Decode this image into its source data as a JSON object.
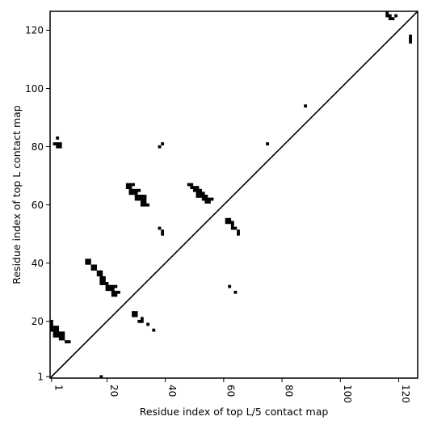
{
  "chart_data": {
    "type": "heatmap",
    "title": "",
    "xlabel": "Residue index of top L/5 contact map",
    "ylabel": "Residue index of top L contact map",
    "xlim": [
      0.5,
      126.5
    ],
    "ylim": [
      0.5,
      126.5
    ],
    "xticks": [
      1,
      20,
      40,
      60,
      80,
      100,
      120
    ],
    "yticks": [
      1,
      20,
      40,
      60,
      80,
      100,
      120
    ],
    "xtick_labels": [
      "1",
      "20",
      "40",
      "60",
      "80",
      "100",
      "120"
    ],
    "ytick_labels": [
      "1",
      "20",
      "40",
      "60",
      "80",
      "100",
      "120"
    ],
    "xtick_rotation": "vertical",
    "grid": false,
    "legend": "none",
    "diagonal_line": true,
    "cell_color": "#000000",
    "line_color": "#000000",
    "contacts": [
      [
        1,
        20
      ],
      [
        1,
        19
      ],
      [
        1,
        18
      ],
      [
        1,
        17
      ],
      [
        2,
        18
      ],
      [
        2,
        17
      ],
      [
        2,
        16
      ],
      [
        2,
        15
      ],
      [
        3,
        18
      ],
      [
        3,
        17
      ],
      [
        3,
        16
      ],
      [
        3,
        15
      ],
      [
        4,
        16
      ],
      [
        4,
        15
      ],
      [
        4,
        14
      ],
      [
        5,
        16
      ],
      [
        5,
        15
      ],
      [
        5,
        14
      ],
      [
        6,
        13
      ],
      [
        7,
        13
      ],
      [
        2,
        81
      ],
      [
        3,
        83
      ],
      [
        3,
        81
      ],
      [
        3,
        80
      ],
      [
        4,
        81
      ],
      [
        4,
        80
      ],
      [
        13,
        41
      ],
      [
        13,
        40
      ],
      [
        14,
        41
      ],
      [
        14,
        40
      ],
      [
        15,
        39
      ],
      [
        15,
        38
      ],
      [
        16,
        39
      ],
      [
        16,
        38
      ],
      [
        17,
        37
      ],
      [
        17,
        36
      ],
      [
        18,
        37
      ],
      [
        18,
        36
      ],
      [
        18,
        35
      ],
      [
        18,
        34
      ],
      [
        18,
        33
      ],
      [
        19,
        35
      ],
      [
        19,
        34
      ],
      [
        19,
        33
      ],
      [
        20,
        33
      ],
      [
        20,
        32
      ],
      [
        20,
        31
      ],
      [
        21,
        32
      ],
      [
        21,
        31
      ],
      [
        22,
        32
      ],
      [
        22,
        31
      ],
      [
        22,
        30
      ],
      [
        22,
        29
      ],
      [
        23,
        32
      ],
      [
        23,
        30
      ],
      [
        23,
        29
      ],
      [
        24,
        30
      ],
      [
        18,
        1
      ],
      [
        29,
        23
      ],
      [
        29,
        22
      ],
      [
        30,
        23
      ],
      [
        30,
        22
      ],
      [
        31,
        20
      ],
      [
        32,
        21
      ],
      [
        32,
        20
      ],
      [
        34,
        19
      ],
      [
        36,
        17
      ],
      [
        27,
        67
      ],
      [
        27,
        66
      ],
      [
        28,
        67
      ],
      [
        28,
        66
      ],
      [
        28,
        65
      ],
      [
        28,
        64
      ],
      [
        29,
        67
      ],
      [
        29,
        65
      ],
      [
        29,
        64
      ],
      [
        30,
        65
      ],
      [
        30,
        64
      ],
      [
        30,
        63
      ],
      [
        30,
        62
      ],
      [
        31,
        65
      ],
      [
        31,
        63
      ],
      [
        31,
        62
      ],
      [
        32,
        63
      ],
      [
        32,
        62
      ],
      [
        32,
        61
      ],
      [
        32,
        60
      ],
      [
        33,
        63
      ],
      [
        33,
        62
      ],
      [
        33,
        61
      ],
      [
        33,
        60
      ],
      [
        34,
        60
      ],
      [
        38,
        80
      ],
      [
        38,
        52
      ],
      [
        39,
        81
      ],
      [
        39,
        51
      ],
      [
        39,
        50
      ],
      [
        48,
        67
      ],
      [
        49,
        67
      ],
      [
        49,
        66
      ],
      [
        50,
        66
      ],
      [
        50,
        65
      ],
      [
        51,
        66
      ],
      [
        51,
        65
      ],
      [
        51,
        64
      ],
      [
        51,
        63
      ],
      [
        52,
        65
      ],
      [
        52,
        64
      ],
      [
        52,
        63
      ],
      [
        53,
        64
      ],
      [
        53,
        63
      ],
      [
        53,
        62
      ],
      [
        54,
        63
      ],
      [
        54,
        62
      ],
      [
        54,
        61
      ],
      [
        55,
        62
      ],
      [
        55,
        61
      ],
      [
        56,
        62
      ],
      [
        61,
        55
      ],
      [
        61,
        54
      ],
      [
        62,
        55
      ],
      [
        62,
        54
      ],
      [
        62,
        32
      ],
      [
        63,
        54
      ],
      [
        63,
        53
      ],
      [
        63,
        52
      ],
      [
        64,
        52
      ],
      [
        64,
        30
      ],
      [
        65,
        51
      ],
      [
        65,
        50
      ],
      [
        75,
        81
      ],
      [
        88,
        94
      ],
      [
        116,
        126
      ],
      [
        116,
        125
      ],
      [
        117,
        125
      ],
      [
        117,
        124
      ],
      [
        118,
        124
      ],
      [
        119,
        125
      ],
      [
        124,
        118
      ],
      [
        124,
        117
      ],
      [
        124,
        116
      ]
    ]
  }
}
